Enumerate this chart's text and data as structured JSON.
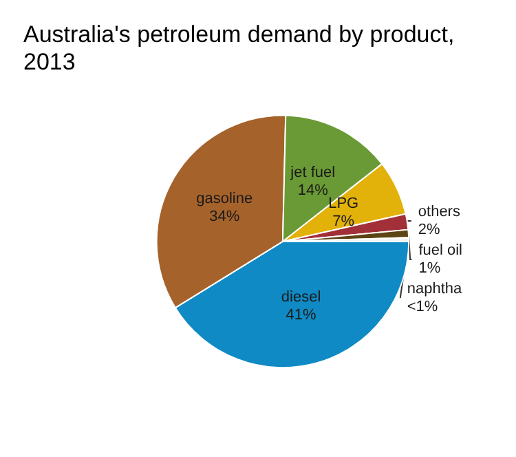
{
  "chart_data": {
    "type": "pie",
    "title": "Australia's petroleum demand by product,\n2013",
    "categories": [
      "diesel",
      "gasoline",
      "jet fuel",
      "LPG",
      "others",
      "fuel oil",
      "naphtha"
    ],
    "values": [
      41,
      34,
      14,
      7,
      2,
      1,
      0.5
    ],
    "value_labels": [
      "41%",
      "34%",
      "14%",
      "7%",
      "2%",
      "1%",
      "<1%"
    ],
    "colors": [
      "#0f8ac4",
      "#a5622a",
      "#6a9a35",
      "#e2b10a",
      "#a23038",
      "#5c4413",
      "#f4f4f4"
    ],
    "legend": false
  }
}
